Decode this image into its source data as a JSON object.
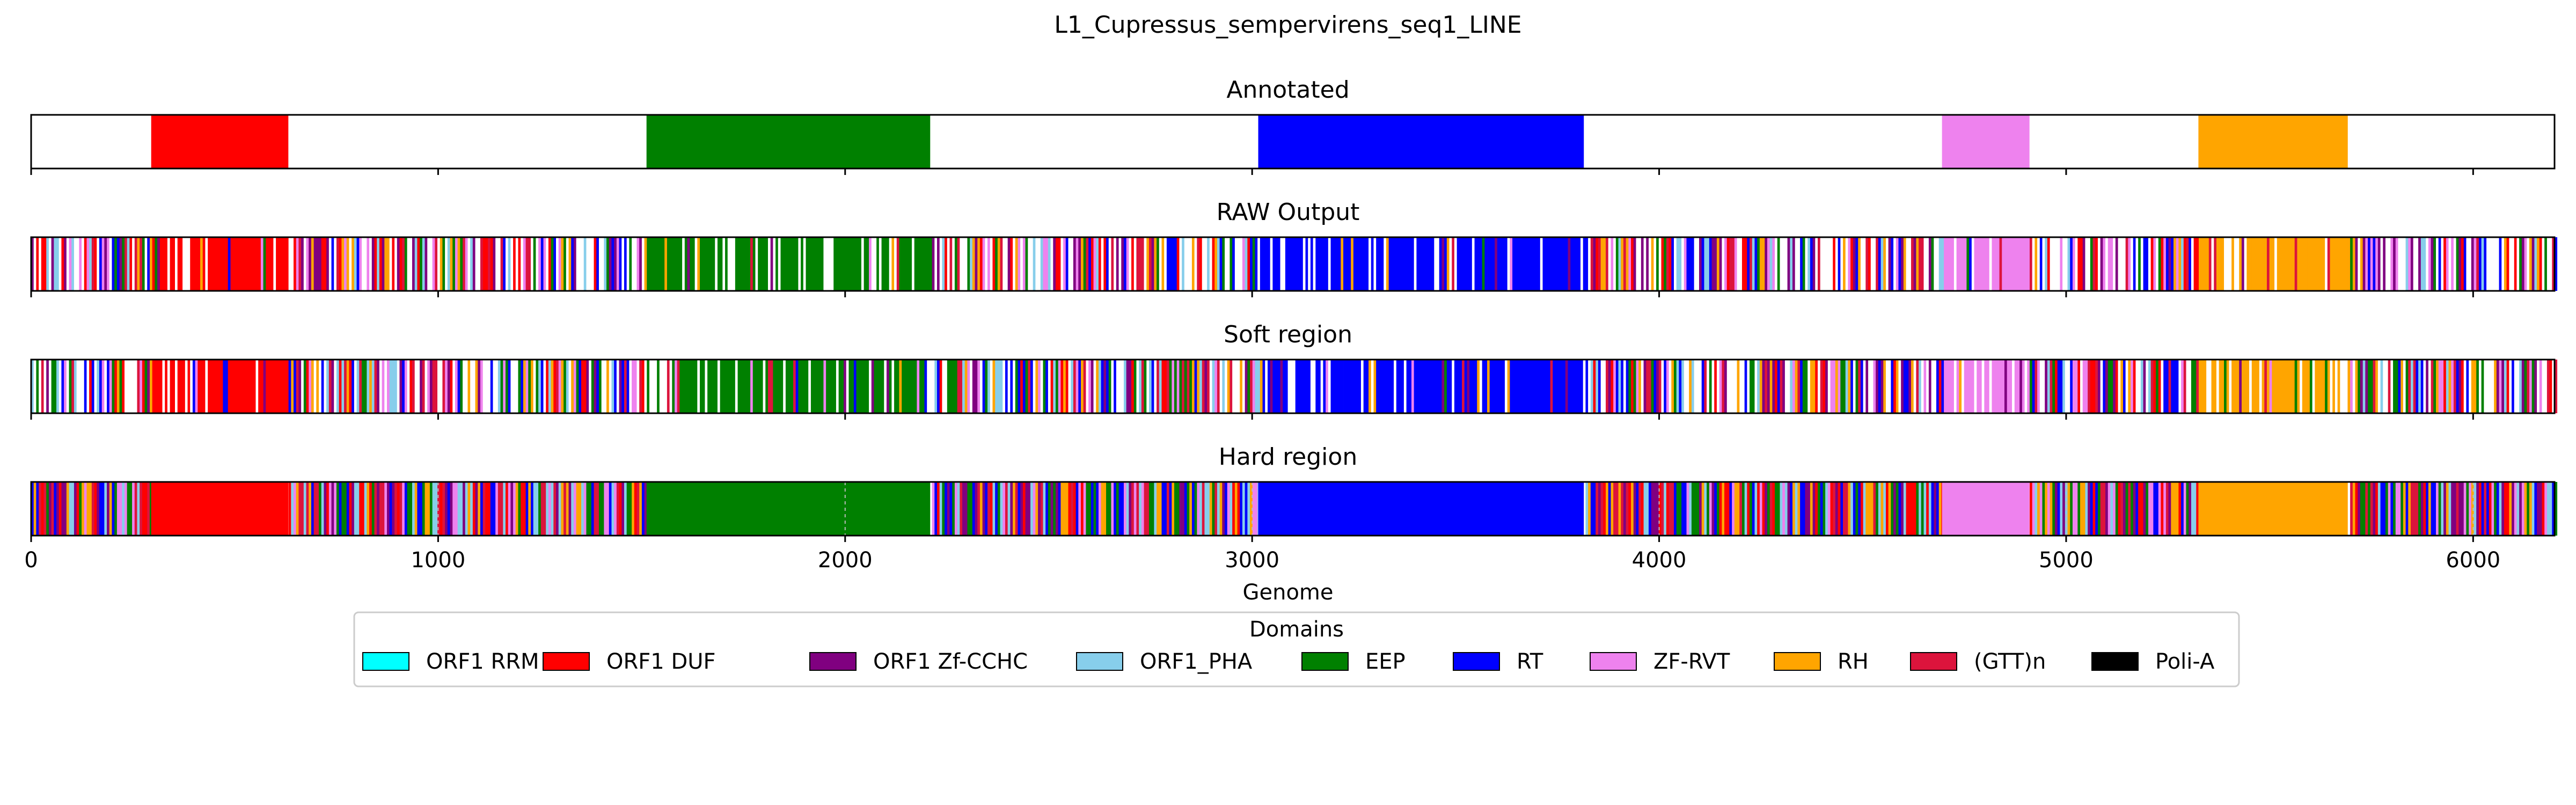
{
  "chart_data": {
    "type": "genome-track",
    "title": "L1_Cupressus_sempervirens_seq1_LINE",
    "xlabel": "Genome",
    "xlim": [
      0,
      6200
    ],
    "xticks": [
      0,
      1000,
      2000,
      3000,
      4000,
      5000,
      6000
    ],
    "legend": {
      "title": "Domains",
      "placement": "bottom-center",
      "entries": [
        {
          "label": "ORF1 RRM",
          "color": "#00ffff"
        },
        {
          "label": "ORF1 DUF",
          "color": "#ff0000"
        },
        {
          "label": "ORF1 Zf-CCHC",
          "color": "#800080"
        },
        {
          "label": "ORF1_PHA",
          "color": "#87ceeb"
        },
        {
          "label": "EEP",
          "color": "#008000"
        },
        {
          "label": "RT",
          "color": "#0000ff"
        },
        {
          "label": "ZF-RVT",
          "color": "#ee82ee"
        },
        {
          "label": "RH",
          "color": "#ffa500"
        },
        {
          "label": "(GTT)n",
          "color": "#dc143c"
        },
        {
          "label": "Poli-A",
          "color": "#000000"
        }
      ]
    },
    "tracks": [
      {
        "title": "Annotated",
        "kind": "solid",
        "segments": [
          {
            "domain": "ORF1 DUF",
            "start": 295,
            "end": 632
          },
          {
            "domain": "EEP",
            "start": 1512,
            "end": 2209
          },
          {
            "domain": "RT",
            "start": 3015,
            "end": 3815
          },
          {
            "domain": "ZF-RVT",
            "start": 4695,
            "end": 4910
          },
          {
            "domain": "RH",
            "start": 5325,
            "end": 5692
          }
        ]
      },
      {
        "title": "RAW Output",
        "kind": "striped",
        "segments": [
          {
            "domain": "ORF1 DUF",
            "start": 295,
            "end": 632
          },
          {
            "domain": "EEP",
            "start": 1512,
            "end": 2209
          },
          {
            "domain": "RT",
            "start": 3015,
            "end": 3815
          },
          {
            "domain": "ZF-RVT",
            "start": 4695,
            "end": 4910
          },
          {
            "domain": "RH",
            "start": 5325,
            "end": 5692
          }
        ]
      },
      {
        "title": "Soft region",
        "kind": "striped",
        "segments": [
          {
            "domain": "ORF1 DUF",
            "start": 295,
            "end": 632
          },
          {
            "domain": "EEP",
            "start": 1512,
            "end": 2209
          },
          {
            "domain": "RT",
            "start": 3015,
            "end": 3815
          },
          {
            "domain": "ZF-RVT",
            "start": 4695,
            "end": 4910
          },
          {
            "domain": "RH",
            "start": 5325,
            "end": 5692
          }
        ]
      },
      {
        "title": "Hard region",
        "kind": "hard",
        "segments": [
          {
            "domain": "ORF1 DUF",
            "start": 295,
            "end": 632
          },
          {
            "domain": "EEP",
            "start": 1512,
            "end": 2209
          },
          {
            "domain": "RT",
            "start": 3015,
            "end": 3815
          },
          {
            "domain": "ZF-RVT",
            "start": 4695,
            "end": 4910
          },
          {
            "domain": "RH",
            "start": 5325,
            "end": 5692
          }
        ]
      }
    ]
  }
}
